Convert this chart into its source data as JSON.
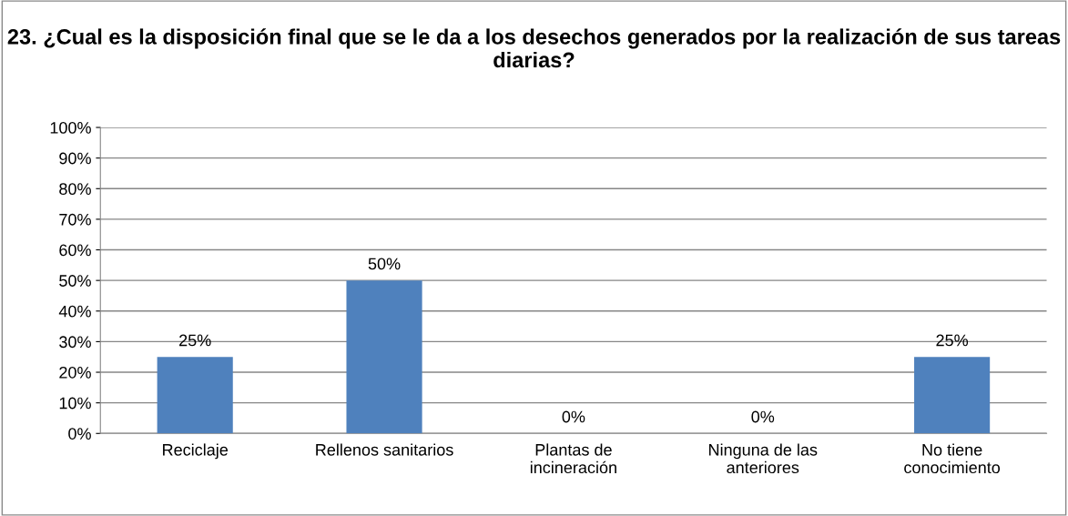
{
  "chart_data": {
    "type": "bar",
    "title": "23. ¿Cual es la disposición final que se le da a los desechos generados por la realización de sus tareas diarias?",
    "categories": [
      "Reciclaje",
      "Rellenos sanitarios",
      "Plantas de\nincineración",
      "Ninguna de las\nanteriores",
      "No tiene\nconocimiento"
    ],
    "values": [
      25,
      50,
      0,
      0,
      25
    ],
    "value_labels": [
      "25%",
      "50%",
      "0%",
      "0%",
      "25%"
    ],
    "color": "#4f81bd",
    "ylim": [
      0,
      100
    ],
    "yticks": [
      {
        "value": 0,
        "label": "0%"
      },
      {
        "value": 10,
        "label": "10%"
      },
      {
        "value": 20,
        "label": "20%"
      },
      {
        "value": 30,
        "label": "30%"
      },
      {
        "value": 40,
        "label": "40%"
      },
      {
        "value": 50,
        "label": "50%"
      },
      {
        "value": 60,
        "label": "60%"
      },
      {
        "value": 70,
        "label": "70%"
      },
      {
        "value": 80,
        "label": "80%"
      },
      {
        "value": 90,
        "label": "90%"
      },
      {
        "value": 100,
        "label": "100%"
      }
    ],
    "grid": "y",
    "legend": false
  }
}
